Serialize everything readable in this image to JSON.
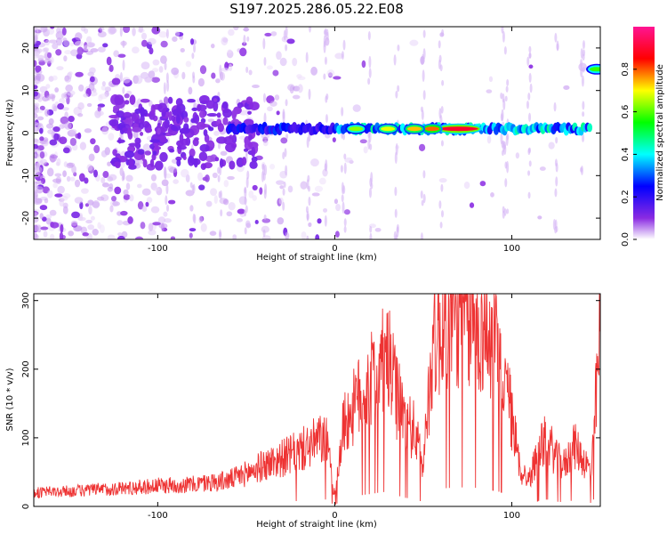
{
  "chart_data": [
    {
      "type": "heatmap",
      "title": "S197.2025.286.05.22.E08",
      "xlabel": "Height of straight line (km)",
      "ylabel": "Frequency (Hz)",
      "xlim": [
        -170,
        150
      ],
      "ylim": [
        -25,
        25
      ],
      "xticks": [
        -100,
        0,
        100
      ],
      "yticks": [
        -20,
        -10,
        0,
        10,
        20
      ],
      "colorbar": {
        "label": "Normalized spectral amplitude",
        "range": [
          0,
          1
        ],
        "ticks": [
          0.0,
          0.2,
          0.4,
          0.6,
          0.8
        ],
        "tick_labels": [
          "0.0",
          "0.2",
          "0.4",
          "0.6",
          "0.8"
        ],
        "colormap": [
          "#ffffff",
          "#8a2be2",
          "#0000ff",
          "#00ffff",
          "#00ff00",
          "#ffff00",
          "#ff0000",
          "#ff1493"
        ]
      },
      "ridge": {
        "frequency_hz": 1,
        "from_km": -60,
        "to_km": 145
      },
      "hotspots": [
        {
          "km": 70,
          "hz": 1,
          "amplitude": 0.9
        },
        {
          "km": 55,
          "hz": 1,
          "amplitude": 0.8
        },
        {
          "km": 45,
          "hz": 1,
          "amplitude": 0.75
        },
        {
          "km": 30,
          "hz": 1,
          "amplitude": 0.7
        },
        {
          "km": 12,
          "hz": 1,
          "amplitude": 0.65
        },
        {
          "km": 148,
          "hz": 15,
          "amplitude": 0.6
        }
      ]
    },
    {
      "type": "line",
      "xlabel": "Height of straight line (km)",
      "ylabel": "SNR (10 * v/v)",
      "xlim": [
        -170,
        150
      ],
      "ylim": [
        0,
        310
      ],
      "xticks": [
        -100,
        0,
        100
      ],
      "yticks": [
        0,
        100,
        200,
        300
      ],
      "series": [
        {
          "name": "SNR",
          "color": "#ee3333",
          "x": [
            -170,
            -150,
            -130,
            -110,
            -100,
            -80,
            -60,
            -50,
            -40,
            -30,
            -20,
            -10,
            -5,
            0,
            5,
            10,
            15,
            20,
            25,
            30,
            35,
            40,
            45,
            50,
            55,
            60,
            65,
            70,
            75,
            80,
            85,
            90,
            95,
            100,
            105,
            110,
            115,
            120,
            125,
            130,
            135,
            140,
            145,
            150
          ],
          "values": [
            20,
            22,
            25,
            28,
            30,
            32,
            38,
            48,
            60,
            70,
            80,
            95,
            100,
            15,
            120,
            140,
            165,
            180,
            200,
            215,
            160,
            125,
            110,
            60,
            230,
            260,
            270,
            280,
            275,
            270,
            260,
            230,
            200,
            130,
            50,
            40,
            80,
            100,
            70,
            60,
            90,
            70,
            50,
            255
          ]
        }
      ]
    }
  ]
}
